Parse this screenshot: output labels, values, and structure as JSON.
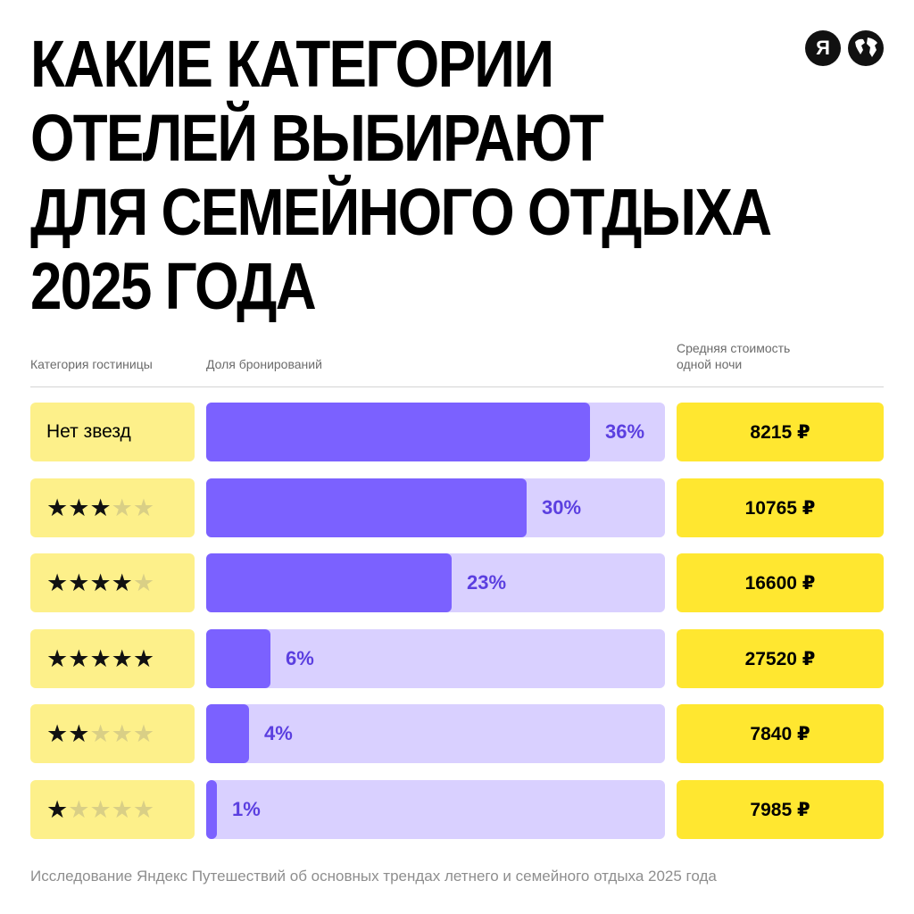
{
  "title_lines": [
    "Какие категории",
    "отелей выбирают",
    "для семейного отдыха",
    "2025 года"
  ],
  "logos": {
    "brand_letter": "Я",
    "globe_icon": "globe-icon"
  },
  "headers": {
    "category": "Категория гостиницы",
    "share": "Доля бронирований",
    "price_line1": "Средняя стоимость",
    "price_line2": "одной ночи"
  },
  "colors": {
    "category_bg": "#fdf08a",
    "bar_track": "#d9d0ff",
    "bar_fill": "#7b61ff",
    "bar_label": "#5b3fe0",
    "price_bg": "#ffe730"
  },
  "chart_data": {
    "type": "bar",
    "orientation": "horizontal",
    "categories": [
      "Нет звезд",
      "3 звезды",
      "4 звезды",
      "5 звезд",
      "2 звезды",
      "1 звезда"
    ],
    "rows": [
      {
        "label": "Нет звезд",
        "stars": 0,
        "share": 36,
        "share_label": "36%",
        "price": "8215 ₽"
      },
      {
        "label": "",
        "stars": 3,
        "share": 30,
        "share_label": "30%",
        "price": "10765 ₽"
      },
      {
        "label": "",
        "stars": 4,
        "share": 23,
        "share_label": "23%",
        "price": "16600 ₽"
      },
      {
        "label": "",
        "stars": 5,
        "share": 6,
        "share_label": "6%",
        "price": "27520 ₽"
      },
      {
        "label": "",
        "stars": 2,
        "share": 4,
        "share_label": "4%",
        "price": "7840 ₽"
      },
      {
        "label": "",
        "stars": 1,
        "share": 1,
        "share_label": "1%",
        "price": "7985 ₽"
      }
    ],
    "xlim": [
      0,
      43
    ]
  },
  "footnote": "Исследование Яндекс Путешествий об основных трендах летнего и семейного отдыха 2025 года"
}
